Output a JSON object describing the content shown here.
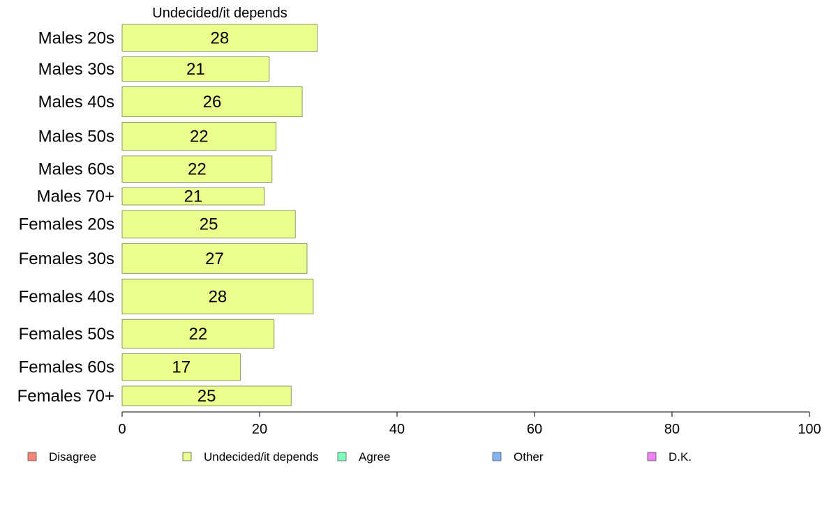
{
  "chart_data": {
    "type": "bar",
    "orientation": "horizontal",
    "title": "Undecided/it depends",
    "categories": [
      "Males 20s",
      "Males 30s",
      "Males 40s",
      "Males 50s",
      "Males 60s",
      "Males 70+",
      "Females 20s",
      "Females 30s",
      "Females 40s",
      "Females 50s",
      "Females 60s",
      "Females 70+"
    ],
    "series": [
      {
        "name": "Undecided/it depends",
        "color": "#ebff8c",
        "values": [
          28.4,
          21.4,
          26.2,
          22.4,
          21.8,
          20.7,
          25.2,
          26.9,
          27.8,
          22.1,
          17.2,
          24.6
        ],
        "labels": [
          "28",
          "21",
          "26",
          "22",
          "22",
          "21",
          "25",
          "27",
          "28",
          "22",
          "17",
          "25"
        ]
      }
    ],
    "bar_weights": [
      44,
      40,
      49,
      46,
      43,
      28,
      45,
      49,
      57,
      47,
      44,
      32
    ],
    "xlim": [
      0,
      100
    ],
    "xticks": [
      0,
      20,
      40,
      60,
      80,
      100
    ],
    "legend": {
      "position": "bottom",
      "items": [
        {
          "label": "Disagree",
          "color": "#f88379"
        },
        {
          "label": "Undecided/it depends",
          "color": "#ebff8c"
        },
        {
          "label": "Agree",
          "color": "#7fffbf"
        },
        {
          "label": "Other",
          "color": "#84b4f8"
        },
        {
          "label": "D.K.",
          "color": "#ee7ff5"
        }
      ]
    }
  }
}
